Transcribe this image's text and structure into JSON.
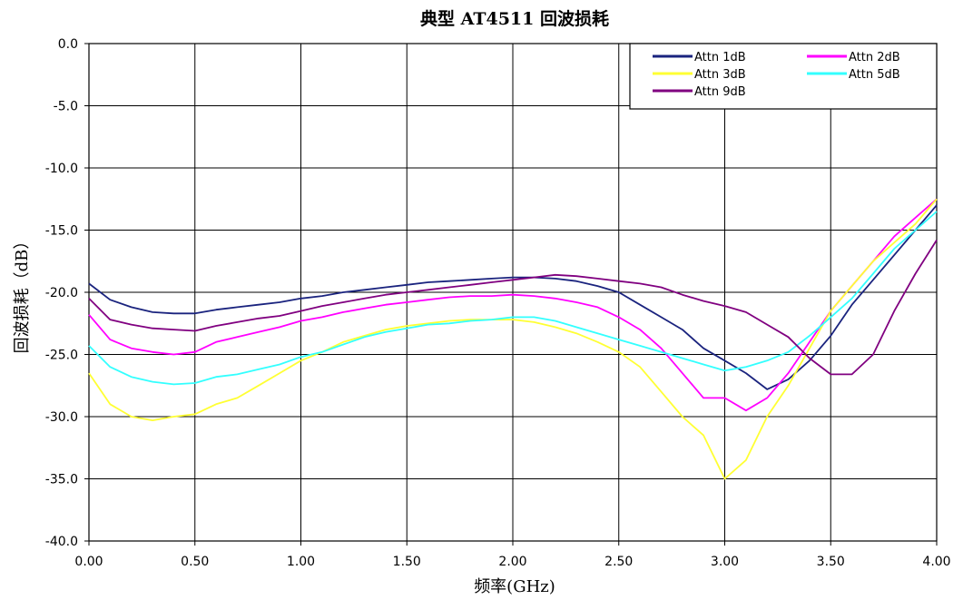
{
  "chart_data": {
    "type": "line",
    "title": "典型 AT4511 回波损耗",
    "xlabel": "频率(GHz)",
    "ylabel": "回波损耗（dB）",
    "xlim": [
      0,
      4
    ],
    "ylim": [
      -40,
      0
    ],
    "grid": true,
    "legend_position": "top-right",
    "x_ticks": [
      "0.00",
      "0.50",
      "1.00",
      "1.50",
      "2.00",
      "2.50",
      "3.00",
      "3.50",
      "4.00"
    ],
    "y_ticks": [
      "0.0",
      "-5.0",
      "-10.0",
      "-15.0",
      "-20.0",
      "-25.0",
      "-30.0",
      "-35.0",
      "-40.0"
    ],
    "x": [
      0.0,
      0.1,
      0.2,
      0.3,
      0.4,
      0.5,
      0.6,
      0.7,
      0.8,
      0.9,
      1.0,
      1.1,
      1.2,
      1.3,
      1.4,
      1.5,
      1.6,
      1.7,
      1.8,
      1.9,
      2.0,
      2.1,
      2.2,
      2.3,
      2.4,
      2.5,
      2.6,
      2.7,
      2.8,
      2.9,
      3.0,
      3.1,
      3.2,
      3.3,
      3.4,
      3.5,
      3.6,
      3.7,
      3.8,
      3.9,
      4.0
    ],
    "series": [
      {
        "name": "Attn 1dB",
        "color": "#1a237e",
        "values": [
          -19.3,
          -20.6,
          -21.2,
          -21.6,
          -21.7,
          -21.7,
          -21.4,
          -21.2,
          -21.0,
          -20.8,
          -20.5,
          -20.3,
          -20.0,
          -19.8,
          -19.6,
          -19.4,
          -19.2,
          -19.1,
          -19.0,
          -18.9,
          -18.8,
          -18.8,
          -18.9,
          -19.1,
          -19.5,
          -20.0,
          -21.0,
          -22.0,
          -23.0,
          -24.5,
          -25.5,
          -26.5,
          -27.8,
          -27.0,
          -25.5,
          -23.5,
          -21.0,
          -19.0,
          -17.0,
          -15.0,
          -13.0
        ]
      },
      {
        "name": "Attn 2dB",
        "color": "#ff00ff",
        "values": [
          -21.8,
          -23.8,
          -24.5,
          -24.8,
          -25.0,
          -24.8,
          -24.0,
          -23.6,
          -23.2,
          -22.8,
          -22.3,
          -22.0,
          -21.6,
          -21.3,
          -21.0,
          -20.8,
          -20.6,
          -20.4,
          -20.3,
          -20.3,
          -20.2,
          -20.3,
          -20.5,
          -20.8,
          -21.2,
          -22.0,
          -23.0,
          -24.5,
          -26.5,
          -28.5,
          -28.5,
          -29.5,
          -28.5,
          -26.5,
          -24.0,
          -21.5,
          -19.5,
          -17.5,
          -15.5,
          -14.0,
          -12.5
        ]
      },
      {
        "name": "Attn 3dB",
        "color": "#ffff33",
        "values": [
          -26.5,
          -29.0,
          -30.0,
          -30.3,
          -30.0,
          -29.8,
          -29.0,
          -28.5,
          -27.5,
          -26.5,
          -25.5,
          -24.8,
          -24.0,
          -23.5,
          -23.0,
          -22.7,
          -22.5,
          -22.3,
          -22.2,
          -22.2,
          -22.2,
          -22.4,
          -22.8,
          -23.3,
          -24.0,
          -24.8,
          -26.0,
          -28.0,
          -30.0,
          -31.5,
          -35.0,
          -33.5,
          -30.0,
          -27.5,
          -24.5,
          -21.5,
          -19.5,
          -17.5,
          -16.0,
          -14.5,
          -12.5
        ]
      },
      {
        "name": "Attn 5dB",
        "color": "#33ffff",
        "values": [
          -24.3,
          -26.0,
          -26.8,
          -27.2,
          -27.4,
          -27.3,
          -26.8,
          -26.6,
          -26.2,
          -25.8,
          -25.2,
          -24.8,
          -24.2,
          -23.6,
          -23.2,
          -22.9,
          -22.6,
          -22.5,
          -22.3,
          -22.2,
          -22.0,
          -22.0,
          -22.3,
          -22.8,
          -23.3,
          -23.8,
          -24.3,
          -24.8,
          -25.3,
          -25.8,
          -26.3,
          -26.0,
          -25.5,
          -24.8,
          -23.5,
          -22.0,
          -20.5,
          -18.5,
          -16.5,
          -15.0,
          -13.5
        ]
      },
      {
        "name": "Attn 9dB",
        "color": "#800080",
        "values": [
          -20.5,
          -22.2,
          -22.6,
          -22.9,
          -23.0,
          -23.1,
          -22.7,
          -22.4,
          -22.1,
          -21.9,
          -21.5,
          -21.1,
          -20.8,
          -20.5,
          -20.2,
          -20.0,
          -19.8,
          -19.6,
          -19.4,
          -19.2,
          -19.0,
          -18.8,
          -18.6,
          -18.7,
          -18.9,
          -19.1,
          -19.3,
          -19.6,
          -20.2,
          -20.7,
          -21.1,
          -21.6,
          -22.6,
          -23.6,
          -25.3,
          -26.6,
          -26.6,
          -25.0,
          -21.5,
          -18.5,
          -15.8
        ]
      }
    ]
  }
}
